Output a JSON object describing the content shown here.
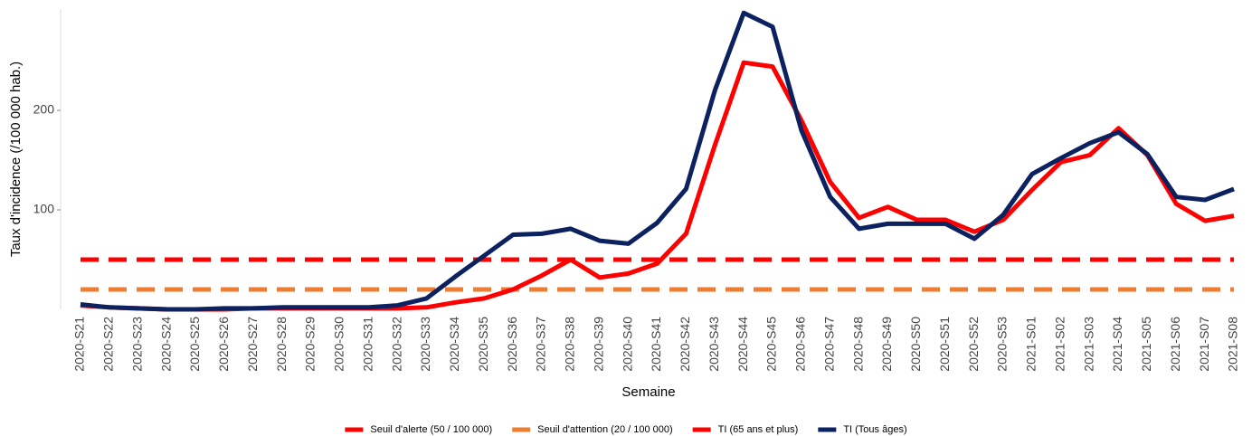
{
  "chart_data": {
    "type": "line",
    "y_label": "Taux d'incidence (/100 000 hab.)",
    "x_label": "Semaine",
    "categories": [
      "2020-S21",
      "2020-S22",
      "2020-S23",
      "2020-S24",
      "2020-S25",
      "2020-S26",
      "2020-S27",
      "2020-S28",
      "2020-S29",
      "2020-S30",
      "2020-S31",
      "2020-S32",
      "2020-S33",
      "2020-S34",
      "2020-S35",
      "2020-S36",
      "2020-S37",
      "2020-S38",
      "2020-S39",
      "2020-S40",
      "2020-S41",
      "2020-S42",
      "2020-S43",
      "2020-S44",
      "2020-S45",
      "2020-S46",
      "2020-S47",
      "2020-S48",
      "2020-S49",
      "2020-S50",
      "2020-S51",
      "2020-S52",
      "2020-S53",
      "2021-S01",
      "2021-S02",
      "2021-S03",
      "2021-S04",
      "2021-S05",
      "2021-S06",
      "2021-S07",
      "2021-S08"
    ],
    "ylim": [
      0,
      300
    ],
    "yticks": [
      100,
      200
    ],
    "series": [
      {
        "name": "Seuil d'alerte (50 / 100 000)",
        "color": "#ff0000",
        "dashed": true,
        "values": [
          50,
          50,
          50,
          50,
          50,
          50,
          50,
          50,
          50,
          50,
          50,
          50,
          50,
          50,
          50,
          50,
          50,
          50,
          50,
          50,
          50,
          50,
          50,
          50,
          50,
          50,
          50,
          50,
          50,
          50,
          50,
          50,
          50,
          50,
          50,
          50,
          50,
          50,
          50,
          50,
          50
        ]
      },
      {
        "name": "Seuil d'attention (20 / 100 000)",
        "color": "#ee7d31",
        "dashed": true,
        "values": [
          20,
          20,
          20,
          20,
          20,
          20,
          20,
          20,
          20,
          20,
          20,
          20,
          20,
          20,
          20,
          20,
          20,
          20,
          20,
          20,
          20,
          20,
          20,
          20,
          20,
          20,
          20,
          20,
          20,
          20,
          20,
          20,
          20,
          20,
          20,
          20,
          20,
          20,
          20,
          20,
          20
        ]
      },
      {
        "name": "TI (65 ans et plus)",
        "color": "#ff0000",
        "dashed": false,
        "values": [
          4,
          2,
          1,
          0,
          0,
          0,
          1,
          1,
          1,
          1,
          1,
          1,
          2,
          7,
          11,
          20,
          34,
          50,
          32,
          36,
          46,
          76,
          165,
          248,
          244,
          190,
          128,
          92,
          103,
          90,
          90,
          78,
          90,
          120,
          148,
          155,
          182,
          155,
          106,
          89,
          94
        ]
      },
      {
        "name": "TI (Tous âges)",
        "color": "#0b2160",
        "dashed": false,
        "values": [
          5,
          2,
          1,
          0,
          0,
          1,
          1,
          2,
          2,
          2,
          2,
          4,
          11,
          33,
          54,
          75,
          76,
          81,
          69,
          66,
          87,
          121,
          220,
          298,
          284,
          180,
          113,
          81,
          86,
          86,
          86,
          71,
          95,
          136,
          152,
          167,
          178,
          156,
          113,
          110,
          121
        ]
      }
    ]
  }
}
